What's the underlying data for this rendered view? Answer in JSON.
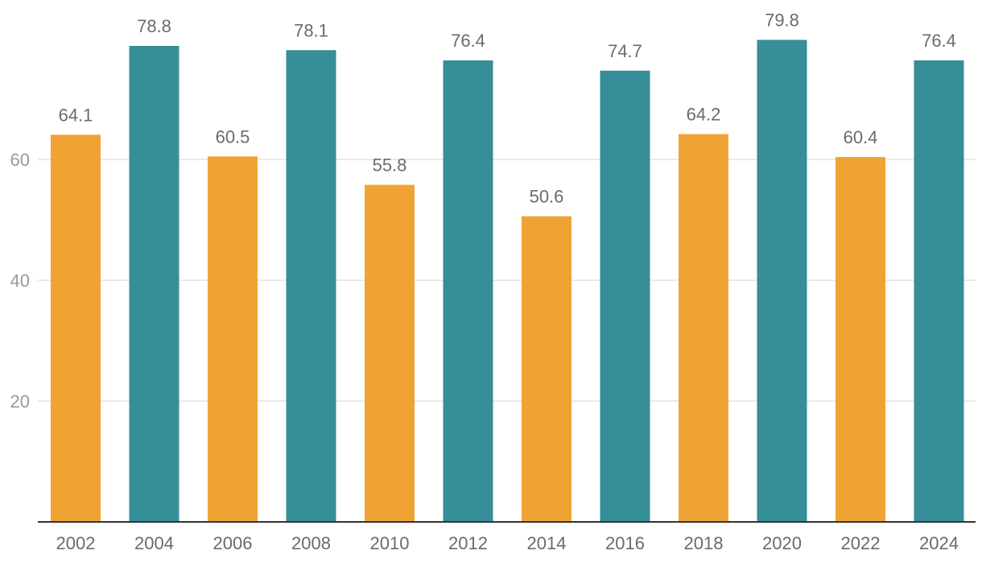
{
  "chart_data": {
    "type": "bar",
    "title": "",
    "xlabel": "",
    "ylabel": "",
    "categories": [
      "2002",
      "2004",
      "2006",
      "2008",
      "2010",
      "2012",
      "2014",
      "2016",
      "2018",
      "2020",
      "2022",
      "2024"
    ],
    "values": [
      64.1,
      78.8,
      60.5,
      78.1,
      55.8,
      76.4,
      50.6,
      74.7,
      64.2,
      79.8,
      60.4,
      76.4
    ],
    "data_labels": [
      "64.1",
      "78.8",
      "60.5",
      "78.1",
      "55.8",
      "76.4",
      "50.6",
      "74.7",
      "64.2",
      "79.8",
      "60.4",
      "76.4"
    ],
    "yticks": [
      20,
      40,
      60
    ],
    "ylim": [
      0,
      80
    ],
    "grid": true,
    "legend": "none",
    "bar_colors": [
      "#f0a335",
      "#368e98",
      "#f0a335",
      "#368e98",
      "#f0a335",
      "#368e98",
      "#f0a335",
      "#368e98",
      "#f0a335",
      "#368e98",
      "#f0a335",
      "#368e98"
    ]
  }
}
